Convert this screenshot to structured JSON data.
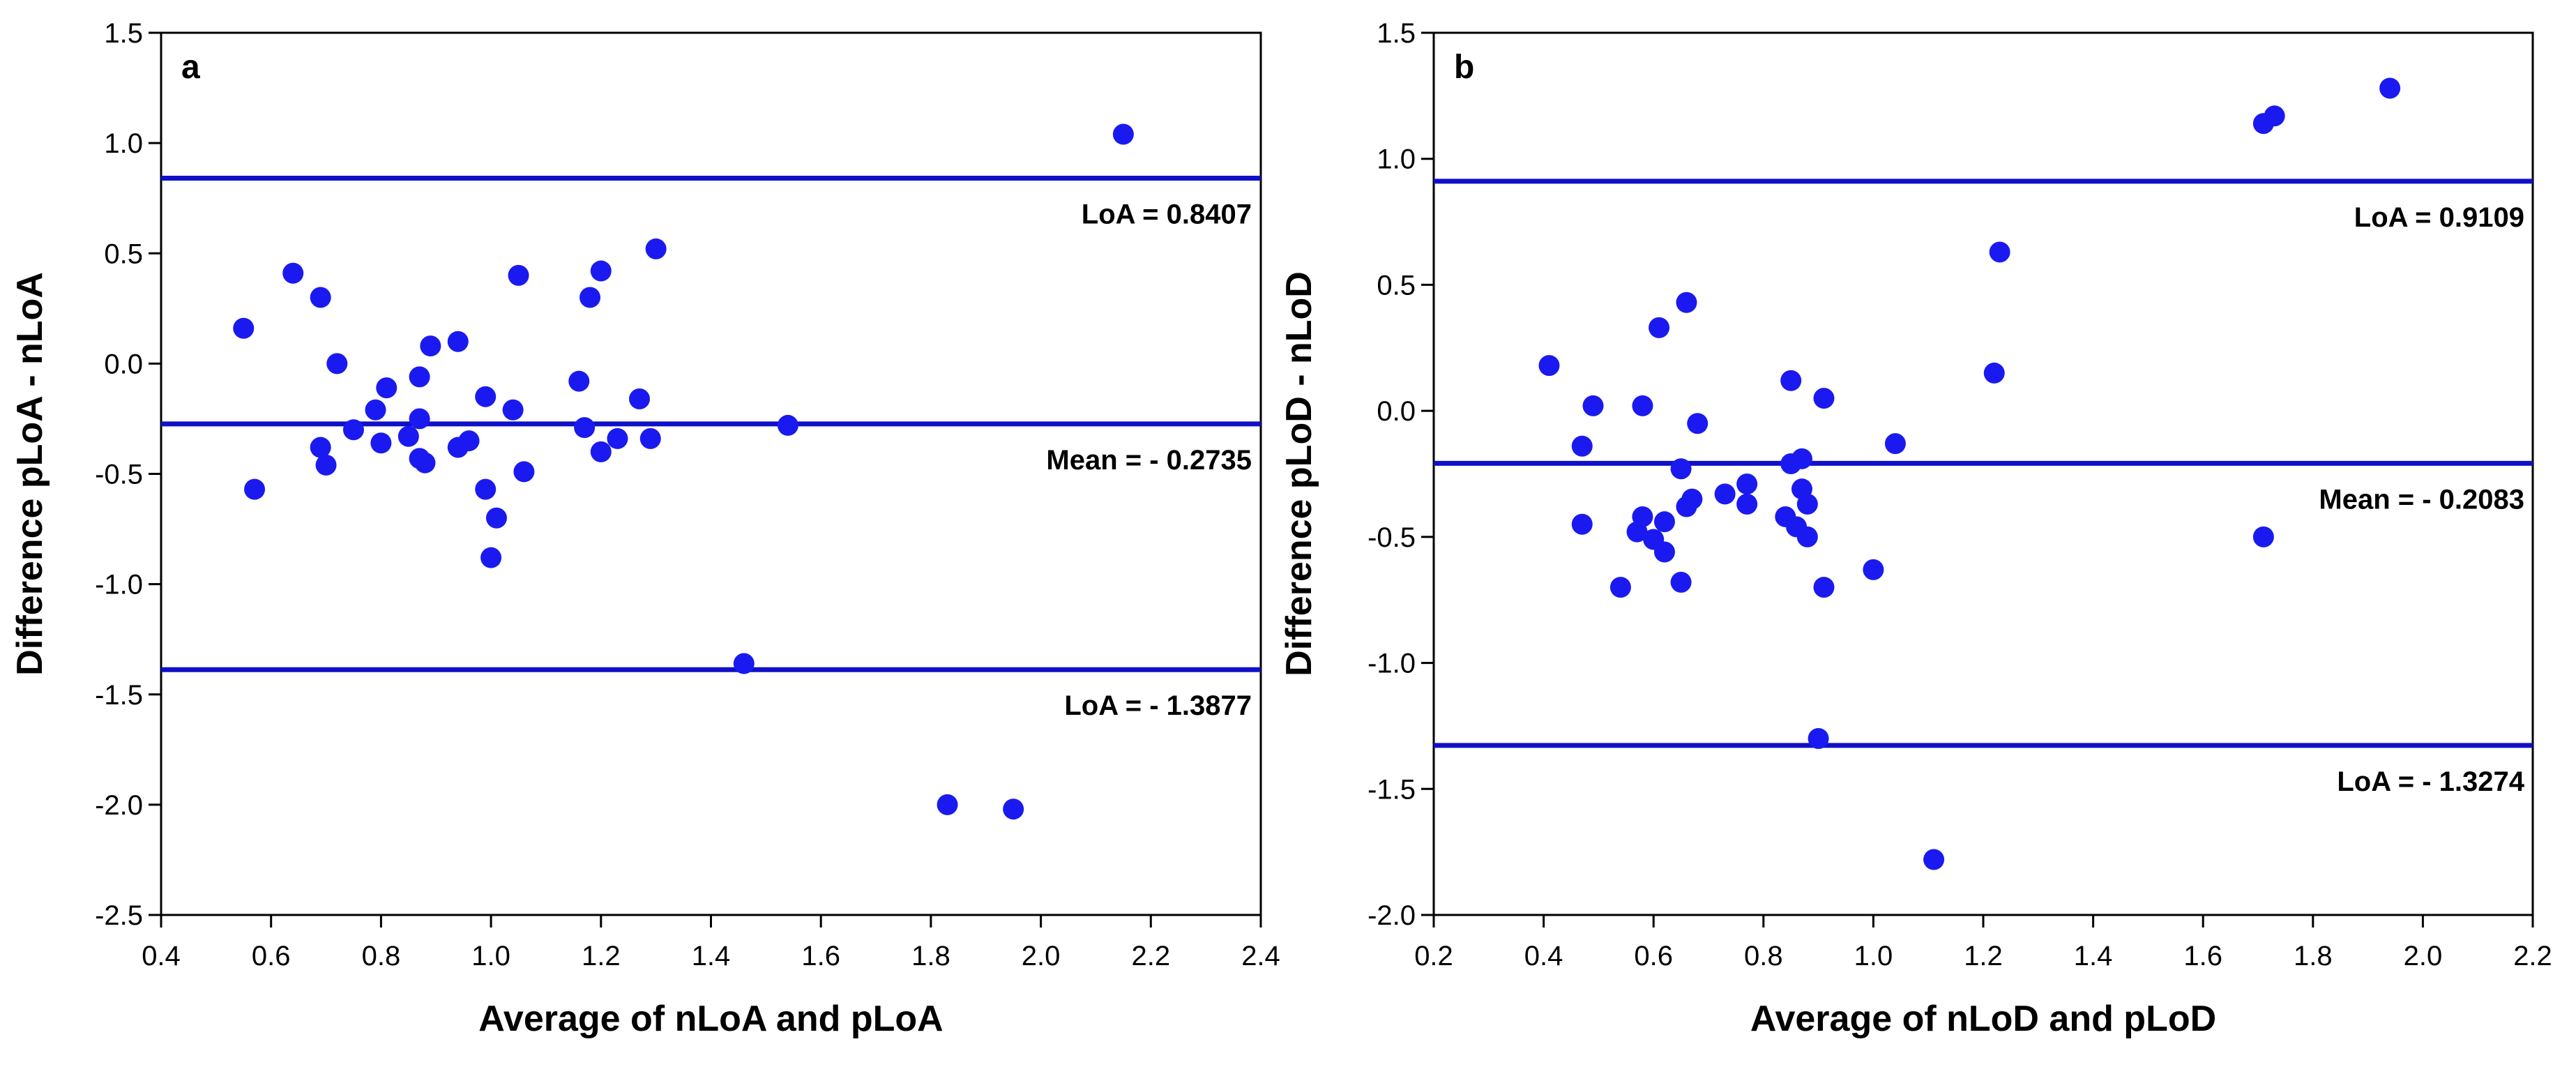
{
  "chart_data": [
    {
      "type": "scatter",
      "panel_label": "a",
      "xlabel": "Average of nLoA and pLoA",
      "ylabel": "Difference pLoA - nLoA",
      "xlim": [
        0.4,
        2.4
      ],
      "ylim": [
        -2.5,
        1.5
      ],
      "xticks": [
        0.4,
        0.6,
        0.8,
        1.0,
        1.2,
        1.4,
        1.6,
        1.8,
        2.0,
        2.2,
        2.4
      ],
      "yticks": [
        -2.5,
        -2.0,
        -1.5,
        -1.0,
        -0.5,
        0.0,
        0.5,
        1.0,
        1.5
      ],
      "xtick_labels": [
        "0.4",
        "0.6",
        "0.8",
        "1.0",
        "1.2",
        "1.4",
        "1.6",
        "1.8",
        "2.0",
        "2.2",
        "2.4"
      ],
      "ytick_labels": [
        "-2.5",
        "-2.0",
        "-1.5",
        "-1.0",
        "-0.5",
        "0.0",
        "0.5",
        "1.0",
        "1.5"
      ],
      "lines": [
        {
          "name": "upper-loa",
          "y": 0.8407,
          "label": "LoA = 0.8407"
        },
        {
          "name": "mean",
          "y": -0.2735,
          "label": "Mean = - 0.2735"
        },
        {
          "name": "lower-loa",
          "y": -1.3877,
          "label": "LoA = - 1.3877"
        }
      ],
      "points": [
        {
          "x": 0.55,
          "y": 0.16
        },
        {
          "x": 0.57,
          "y": -0.57
        },
        {
          "x": 0.64,
          "y": 0.41
        },
        {
          "x": 0.69,
          "y": 0.3
        },
        {
          "x": 0.69,
          "y": -0.38
        },
        {
          "x": 0.7,
          "y": -0.46
        },
        {
          "x": 0.72,
          "y": 0.0
        },
        {
          "x": 0.75,
          "y": -0.3
        },
        {
          "x": 0.79,
          "y": -0.21
        },
        {
          "x": 0.8,
          "y": -0.36
        },
        {
          "x": 0.81,
          "y": -0.11
        },
        {
          "x": 0.85,
          "y": -0.33
        },
        {
          "x": 0.87,
          "y": -0.06
        },
        {
          "x": 0.87,
          "y": -0.25
        },
        {
          "x": 0.87,
          "y": -0.43
        },
        {
          "x": 0.88,
          "y": -0.45
        },
        {
          "x": 0.89,
          "y": 0.08
        },
        {
          "x": 0.94,
          "y": 0.1
        },
        {
          "x": 0.94,
          "y": -0.38
        },
        {
          "x": 0.96,
          "y": -0.35
        },
        {
          "x": 0.99,
          "y": -0.15
        },
        {
          "x": 0.99,
          "y": -0.57
        },
        {
          "x": 1.0,
          "y": -0.88
        },
        {
          "x": 1.01,
          "y": -0.7
        },
        {
          "x": 1.04,
          "y": -0.21
        },
        {
          "x": 1.05,
          "y": 0.4
        },
        {
          "x": 1.06,
          "y": -0.49
        },
        {
          "x": 1.16,
          "y": -0.08
        },
        {
          "x": 1.17,
          "y": -0.29
        },
        {
          "x": 1.18,
          "y": 0.3
        },
        {
          "x": 1.2,
          "y": 0.42
        },
        {
          "x": 1.2,
          "y": -0.4
        },
        {
          "x": 1.23,
          "y": -0.34
        },
        {
          "x": 1.27,
          "y": -0.16
        },
        {
          "x": 1.29,
          "y": -0.34
        },
        {
          "x": 1.3,
          "y": 0.52
        },
        {
          "x": 1.46,
          "y": -1.36
        },
        {
          "x": 1.54,
          "y": -0.28
        },
        {
          "x": 1.83,
          "y": -2.0
        },
        {
          "x": 1.95,
          "y": -2.02
        },
        {
          "x": 2.15,
          "y": 1.04
        }
      ]
    },
    {
      "type": "scatter",
      "panel_label": "b",
      "xlabel": "Average of nLoD and pLoD",
      "ylabel": "Difference pLoD - nLoD",
      "xlim": [
        0.2,
        2.2
      ],
      "ylim": [
        -2.0,
        1.5
      ],
      "xticks": [
        0.2,
        0.4,
        0.6,
        0.8,
        1.0,
        1.2,
        1.4,
        1.6,
        1.8,
        2.0,
        2.2
      ],
      "yticks": [
        -2.0,
        -1.5,
        -1.0,
        -0.5,
        0.0,
        0.5,
        1.0,
        1.5
      ],
      "xtick_labels": [
        "0.2",
        "0.4",
        "0.6",
        "0.8",
        "1.0",
        "1.2",
        "1.4",
        "1.6",
        "1.8",
        "2.0",
        "2.2"
      ],
      "ytick_labels": [
        "-2.0",
        "-1.5",
        "-1.0",
        "-0.5",
        "0.0",
        "0.5",
        "1.0",
        "1.5"
      ],
      "lines": [
        {
          "name": "upper-loa",
          "y": 0.9109,
          "label": "LoA = 0.9109"
        },
        {
          "name": "mean",
          "y": -0.2083,
          "label": "Mean = - 0.2083"
        },
        {
          "name": "lower-loa",
          "y": -1.3274,
          "label": "LoA = - 1.3274"
        }
      ],
      "points": [
        {
          "x": 0.41,
          "y": 0.18
        },
        {
          "x": 0.47,
          "y": -0.14
        },
        {
          "x": 0.47,
          "y": -0.45
        },
        {
          "x": 0.49,
          "y": 0.02
        },
        {
          "x": 0.54,
          "y": -0.7
        },
        {
          "x": 0.57,
          "y": -0.48
        },
        {
          "x": 0.58,
          "y": 0.02
        },
        {
          "x": 0.58,
          "y": -0.42
        },
        {
          "x": 0.6,
          "y": -0.51
        },
        {
          "x": 0.61,
          "y": 0.33
        },
        {
          "x": 0.62,
          "y": -0.44
        },
        {
          "x": 0.62,
          "y": -0.56
        },
        {
          "x": 0.65,
          "y": -0.23
        },
        {
          "x": 0.65,
          "y": -0.68
        },
        {
          "x": 0.66,
          "y": 0.43
        },
        {
          "x": 0.66,
          "y": -0.38
        },
        {
          "x": 0.67,
          "y": -0.35
        },
        {
          "x": 0.68,
          "y": -0.05
        },
        {
          "x": 0.73,
          "y": -0.33
        },
        {
          "x": 0.77,
          "y": -0.29
        },
        {
          "x": 0.77,
          "y": -0.37
        },
        {
          "x": 0.84,
          "y": -0.42
        },
        {
          "x": 0.85,
          "y": 0.12
        },
        {
          "x": 0.85,
          "y": -0.21
        },
        {
          "x": 0.86,
          "y": -0.46
        },
        {
          "x": 0.87,
          "y": -0.19
        },
        {
          "x": 0.87,
          "y": -0.31
        },
        {
          "x": 0.88,
          "y": -0.5
        },
        {
          "x": 0.88,
          "y": -0.37
        },
        {
          "x": 0.9,
          "y": -1.3
        },
        {
          "x": 0.91,
          "y": 0.05
        },
        {
          "x": 0.91,
          "y": -0.7
        },
        {
          "x": 1.0,
          "y": -0.63
        },
        {
          "x": 1.04,
          "y": -0.13
        },
        {
          "x": 1.11,
          "y": -1.78
        },
        {
          "x": 1.22,
          "y": 0.15
        },
        {
          "x": 1.23,
          "y": 0.63
        },
        {
          "x": 1.71,
          "y": 1.14
        },
        {
          "x": 1.71,
          "y": -0.5
        },
        {
          "x": 1.73,
          "y": 1.17
        },
        {
          "x": 1.94,
          "y": 1.28
        }
      ]
    }
  ]
}
